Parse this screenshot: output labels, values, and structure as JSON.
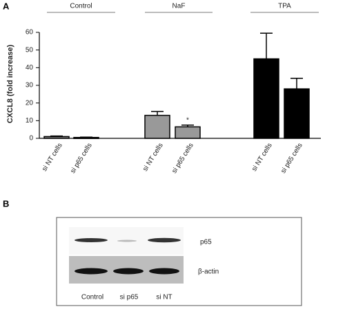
{
  "panel_labels": [
    "A",
    "B"
  ],
  "chart_data": {
    "type": "bar",
    "y_label": "CXCL8 (fold increase)",
    "groups": [
      "Control",
      "NaF",
      "TPA"
    ],
    "categories": [
      "si NT cells",
      "si p65 cells",
      "si NT cells",
      "si p65 cells",
      "si NT cells",
      "si p65 cells"
    ],
    "values": [
      1,
      0.5,
      13,
      6.5,
      45,
      28
    ],
    "errors": [
      0.3,
      0.2,
      2.2,
      1,
      14.5,
      6
    ],
    "colors": [
      "#888888",
      "#888888",
      "#999999",
      "#999999",
      "#000000",
      "#000000"
    ],
    "annotations": [
      {
        "text": "*",
        "category": 3
      }
    ],
    "ylim": [
      0,
      60
    ],
    "yticks": [
      0,
      10,
      20,
      30,
      40,
      50,
      60
    ]
  },
  "blot": {
    "row_labels": [
      "p65",
      "β-actin"
    ],
    "lane_labels": [
      "Control",
      "si p65",
      "si NT"
    ]
  }
}
